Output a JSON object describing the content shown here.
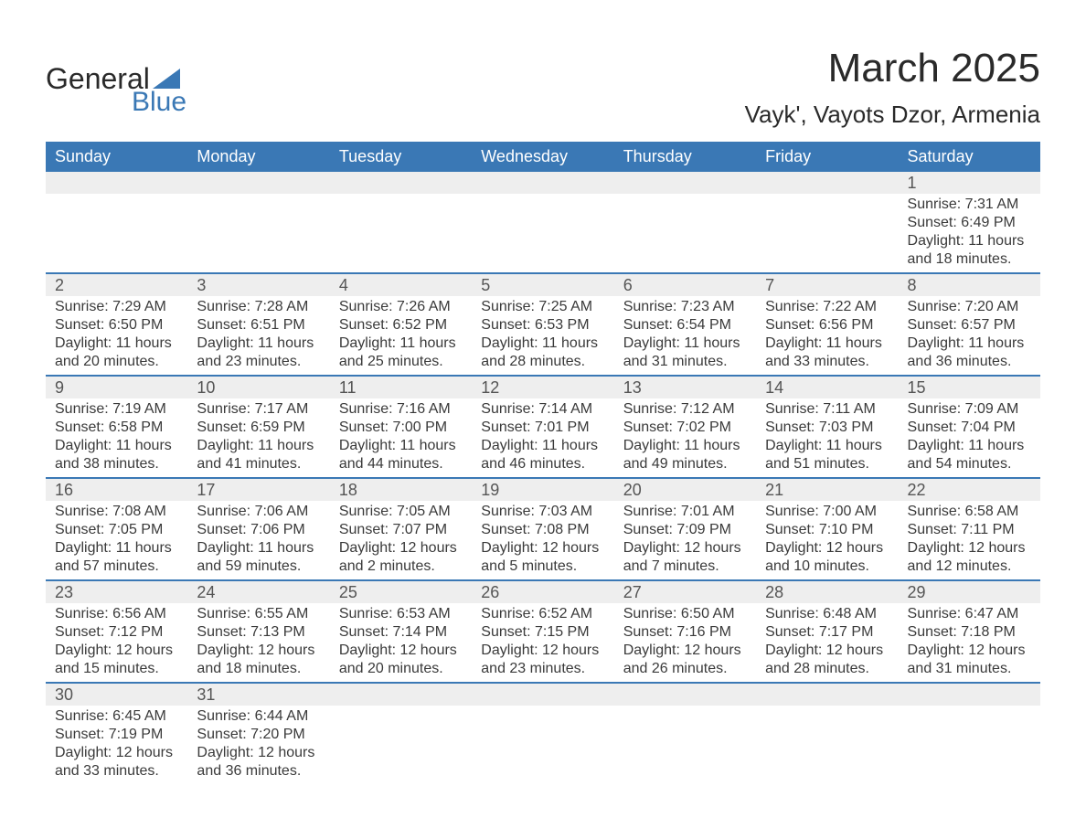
{
  "logo": {
    "text_top": "General",
    "text_bottom": "Blue",
    "triangle_color": "#3a78b5",
    "top_color": "#2a2a2a",
    "bottom_color": "#3a78b5"
  },
  "title": {
    "month": "March 2025",
    "location": "Vayk', Vayots Dzor, Armenia"
  },
  "colors": {
    "header_bg": "#3a78b5",
    "header_text": "#ffffff",
    "day_bar_bg": "#eeeeee",
    "day_bar_text": "#555555",
    "body_text": "#3a3a3a",
    "row_border": "#3a78b5",
    "background": "#ffffff"
  },
  "weekdays": [
    "Sunday",
    "Monday",
    "Tuesday",
    "Wednesday",
    "Thursday",
    "Friday",
    "Saturday"
  ],
  "weeks": [
    [
      null,
      null,
      null,
      null,
      null,
      null,
      {
        "day": "1",
        "sunrise": "Sunrise: 7:31 AM",
        "sunset": "Sunset: 6:49 PM",
        "daylight1": "Daylight: 11 hours",
        "daylight2": "and 18 minutes."
      }
    ],
    [
      {
        "day": "2",
        "sunrise": "Sunrise: 7:29 AM",
        "sunset": "Sunset: 6:50 PM",
        "daylight1": "Daylight: 11 hours",
        "daylight2": "and 20 minutes."
      },
      {
        "day": "3",
        "sunrise": "Sunrise: 7:28 AM",
        "sunset": "Sunset: 6:51 PM",
        "daylight1": "Daylight: 11 hours",
        "daylight2": "and 23 minutes."
      },
      {
        "day": "4",
        "sunrise": "Sunrise: 7:26 AM",
        "sunset": "Sunset: 6:52 PM",
        "daylight1": "Daylight: 11 hours",
        "daylight2": "and 25 minutes."
      },
      {
        "day": "5",
        "sunrise": "Sunrise: 7:25 AM",
        "sunset": "Sunset: 6:53 PM",
        "daylight1": "Daylight: 11 hours",
        "daylight2": "and 28 minutes."
      },
      {
        "day": "6",
        "sunrise": "Sunrise: 7:23 AM",
        "sunset": "Sunset: 6:54 PM",
        "daylight1": "Daylight: 11 hours",
        "daylight2": "and 31 minutes."
      },
      {
        "day": "7",
        "sunrise": "Sunrise: 7:22 AM",
        "sunset": "Sunset: 6:56 PM",
        "daylight1": "Daylight: 11 hours",
        "daylight2": "and 33 minutes."
      },
      {
        "day": "8",
        "sunrise": "Sunrise: 7:20 AM",
        "sunset": "Sunset: 6:57 PM",
        "daylight1": "Daylight: 11 hours",
        "daylight2": "and 36 minutes."
      }
    ],
    [
      {
        "day": "9",
        "sunrise": "Sunrise: 7:19 AM",
        "sunset": "Sunset: 6:58 PM",
        "daylight1": "Daylight: 11 hours",
        "daylight2": "and 38 minutes."
      },
      {
        "day": "10",
        "sunrise": "Sunrise: 7:17 AM",
        "sunset": "Sunset: 6:59 PM",
        "daylight1": "Daylight: 11 hours",
        "daylight2": "and 41 minutes."
      },
      {
        "day": "11",
        "sunrise": "Sunrise: 7:16 AM",
        "sunset": "Sunset: 7:00 PM",
        "daylight1": "Daylight: 11 hours",
        "daylight2": "and 44 minutes."
      },
      {
        "day": "12",
        "sunrise": "Sunrise: 7:14 AM",
        "sunset": "Sunset: 7:01 PM",
        "daylight1": "Daylight: 11 hours",
        "daylight2": "and 46 minutes."
      },
      {
        "day": "13",
        "sunrise": "Sunrise: 7:12 AM",
        "sunset": "Sunset: 7:02 PM",
        "daylight1": "Daylight: 11 hours",
        "daylight2": "and 49 minutes."
      },
      {
        "day": "14",
        "sunrise": "Sunrise: 7:11 AM",
        "sunset": "Sunset: 7:03 PM",
        "daylight1": "Daylight: 11 hours",
        "daylight2": "and 51 minutes."
      },
      {
        "day": "15",
        "sunrise": "Sunrise: 7:09 AM",
        "sunset": "Sunset: 7:04 PM",
        "daylight1": "Daylight: 11 hours",
        "daylight2": "and 54 minutes."
      }
    ],
    [
      {
        "day": "16",
        "sunrise": "Sunrise: 7:08 AM",
        "sunset": "Sunset: 7:05 PM",
        "daylight1": "Daylight: 11 hours",
        "daylight2": "and 57 minutes."
      },
      {
        "day": "17",
        "sunrise": "Sunrise: 7:06 AM",
        "sunset": "Sunset: 7:06 PM",
        "daylight1": "Daylight: 11 hours",
        "daylight2": "and 59 minutes."
      },
      {
        "day": "18",
        "sunrise": "Sunrise: 7:05 AM",
        "sunset": "Sunset: 7:07 PM",
        "daylight1": "Daylight: 12 hours",
        "daylight2": "and 2 minutes."
      },
      {
        "day": "19",
        "sunrise": "Sunrise: 7:03 AM",
        "sunset": "Sunset: 7:08 PM",
        "daylight1": "Daylight: 12 hours",
        "daylight2": "and 5 minutes."
      },
      {
        "day": "20",
        "sunrise": "Sunrise: 7:01 AM",
        "sunset": "Sunset: 7:09 PM",
        "daylight1": "Daylight: 12 hours",
        "daylight2": "and 7 minutes."
      },
      {
        "day": "21",
        "sunrise": "Sunrise: 7:00 AM",
        "sunset": "Sunset: 7:10 PM",
        "daylight1": "Daylight: 12 hours",
        "daylight2": "and 10 minutes."
      },
      {
        "day": "22",
        "sunrise": "Sunrise: 6:58 AM",
        "sunset": "Sunset: 7:11 PM",
        "daylight1": "Daylight: 12 hours",
        "daylight2": "and 12 minutes."
      }
    ],
    [
      {
        "day": "23",
        "sunrise": "Sunrise: 6:56 AM",
        "sunset": "Sunset: 7:12 PM",
        "daylight1": "Daylight: 12 hours",
        "daylight2": "and 15 minutes."
      },
      {
        "day": "24",
        "sunrise": "Sunrise: 6:55 AM",
        "sunset": "Sunset: 7:13 PM",
        "daylight1": "Daylight: 12 hours",
        "daylight2": "and 18 minutes."
      },
      {
        "day": "25",
        "sunrise": "Sunrise: 6:53 AM",
        "sunset": "Sunset: 7:14 PM",
        "daylight1": "Daylight: 12 hours",
        "daylight2": "and 20 minutes."
      },
      {
        "day": "26",
        "sunrise": "Sunrise: 6:52 AM",
        "sunset": "Sunset: 7:15 PM",
        "daylight1": "Daylight: 12 hours",
        "daylight2": "and 23 minutes."
      },
      {
        "day": "27",
        "sunrise": "Sunrise: 6:50 AM",
        "sunset": "Sunset: 7:16 PM",
        "daylight1": "Daylight: 12 hours",
        "daylight2": "and 26 minutes."
      },
      {
        "day": "28",
        "sunrise": "Sunrise: 6:48 AM",
        "sunset": "Sunset: 7:17 PM",
        "daylight1": "Daylight: 12 hours",
        "daylight2": "and 28 minutes."
      },
      {
        "day": "29",
        "sunrise": "Sunrise: 6:47 AM",
        "sunset": "Sunset: 7:18 PM",
        "daylight1": "Daylight: 12 hours",
        "daylight2": "and 31 minutes."
      }
    ],
    [
      {
        "day": "30",
        "sunrise": "Sunrise: 6:45 AM",
        "sunset": "Sunset: 7:19 PM",
        "daylight1": "Daylight: 12 hours",
        "daylight2": "and 33 minutes."
      },
      {
        "day": "31",
        "sunrise": "Sunrise: 6:44 AM",
        "sunset": "Sunset: 7:20 PM",
        "daylight1": "Daylight: 12 hours",
        "daylight2": "and 36 minutes."
      },
      null,
      null,
      null,
      null,
      null
    ]
  ]
}
